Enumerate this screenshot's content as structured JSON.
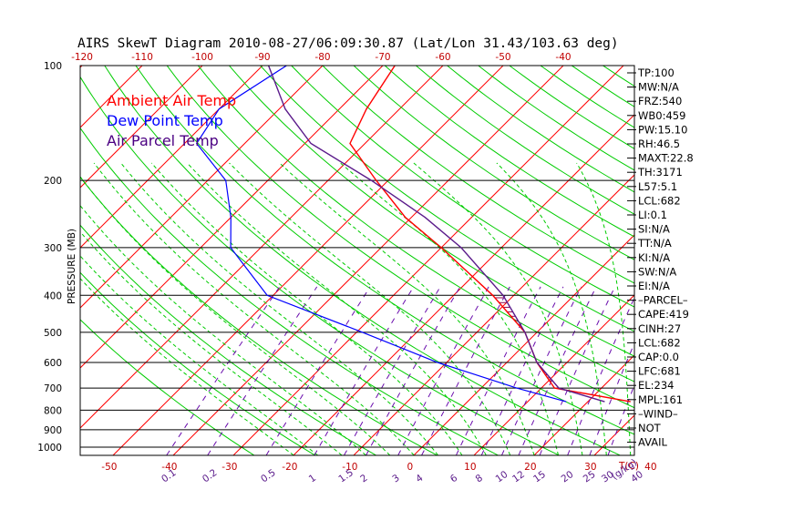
{
  "title": "AIRS SkewT Diagram 2010-08-27/06:09:30.87 (Lat/Lon 31.43/103.63 deg)",
  "ylabel": "PRESSURE (MB)",
  "bottom_axis_unit": "T(C)",
  "mixing_ratio_unit": "(g/kg)",
  "legend": [
    {
      "label": "Ambient Air Temp",
      "color": "#ff0000"
    },
    {
      "label": "Dew Point Temp",
      "color": "#0000ff"
    },
    {
      "label": "Air Parcel Temp",
      "color": "#4b0082"
    }
  ],
  "colors": {
    "isotherm": "#ff0000",
    "dry_adiabat": "#00cc00",
    "moist_adiabat": "#00cc00",
    "mixing_ratio": "#6a0dad",
    "isobar": "#000000",
    "temperature": "#ff0000",
    "dewpoint": "#0000ff",
    "parcel": "#5a1a8a",
    "cape_hatch": "#8b0a50"
  },
  "side_panel": [
    "TP:100",
    "MW:N/A",
    "FRZ:540",
    "WB0:459",
    "PW:15.10",
    "RH:46.5",
    "MAXT:22.8",
    "TH:3171",
    "L57:5.1",
    "LCL:682",
    "LI:0.1",
    "SI:N/A",
    "TT:N/A",
    "KI:N/A",
    "SW:N/A",
    "EI:N/A",
    "–PARCEL–",
    "CAPE:419",
    "CINH:27",
    "LCL:682",
    "CAP:0.0",
    "LFC:681",
    "EL:234",
    "MPL:161",
    "–WIND–",
    "NOT",
    "AVAIL"
  ],
  "chart_data": {
    "type": "line",
    "subtype": "skew-t log-p",
    "title": "AIRS SkewT Diagram 2010-08-27/06:09:30.87 (Lat/Lon 31.43/103.63 deg)",
    "ylabel": "PRESSURE (MB)",
    "xlabel": "T(C)",
    "pressure_ticks": [
      "100",
      "200",
      "300",
      "400",
      "500",
      "600",
      "700",
      "800",
      "900",
      "1000"
    ],
    "pressure_range": [
      1050,
      100
    ],
    "bottom_temp_ticks": [
      "-50",
      "-40",
      "-30",
      "-20",
      "-10",
      "0",
      "10",
      "20",
      "30",
      "40"
    ],
    "top_temp_ticks": [
      "-120",
      "-110",
      "-100",
      "-90",
      "-80",
      "-70",
      "-60",
      "-50",
      "-40"
    ],
    "mixing_ratio_ticks": [
      "0.1",
      "0.2",
      "0.5",
      "1",
      "1.5",
      "2",
      "3",
      "4",
      "6",
      "8",
      "10",
      "12",
      "15",
      "20",
      "25",
      "30",
      "40"
    ],
    "temperature_profile": {
      "pressure": [
        760,
        700,
        600,
        500,
        400,
        300,
        250,
        200,
        160,
        130,
        100
      ],
      "temp": [
        27.1,
        12.2,
        5.0,
        -2.0,
        -13.5,
        -30.0,
        -41.0,
        -52.0,
        -62.5,
        -65.5,
        -68.0
      ]
    },
    "dewpoint_profile": {
      "pressure": [
        760,
        700,
        600,
        500,
        400,
        300,
        250,
        200,
        160,
        130,
        100
      ],
      "temp": [
        16.4,
        5.9,
        -11.5,
        -29.0,
        -51.0,
        -65.0,
        -70.0,
        -77.0,
        -88.0,
        -90.0,
        -86.0
      ]
    },
    "parcel_profile": {
      "pressure": [
        760,
        700,
        600,
        500,
        400,
        300,
        250,
        200,
        160,
        130,
        100
      ],
      "temp": [
        22.8,
        12.9,
        5.0,
        -2.0,
        -11.8,
        -26.7,
        -37.7,
        -52.8,
        -69.0,
        -79.0,
        -89.0
      ]
    },
    "cape_shading_pressure_range": [
      670,
      400
    ]
  }
}
